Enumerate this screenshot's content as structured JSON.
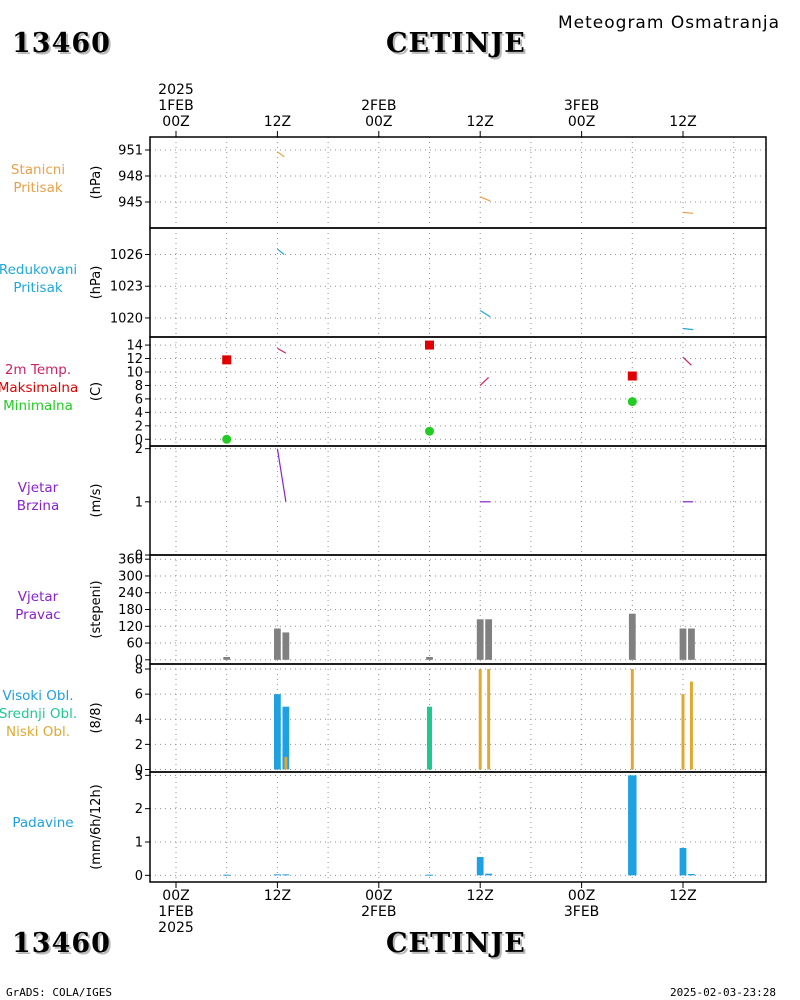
{
  "header": {
    "chart_type": "Meteogram Osmatranja",
    "station_id": "13460",
    "station_name": "CETINJE"
  },
  "footer": {
    "software": "GrADS: COLA/IGES",
    "generated": "2025-02-03-23:28"
  },
  "time_axis": {
    "top_labels": [
      {
        "lines": [
          "2025",
          "1FEB",
          "00Z"
        ],
        "h": 0
      },
      {
        "lines": [
          "12Z"
        ],
        "h": 12
      },
      {
        "lines": [
          "2FEB",
          "00Z"
        ],
        "h": 24
      },
      {
        "lines": [
          "12Z"
        ],
        "h": 36
      },
      {
        "lines": [
          "3FEB",
          "00Z"
        ],
        "h": 48
      },
      {
        "lines": [
          "12Z"
        ],
        "h": 60
      }
    ],
    "bottom_labels": [
      {
        "lines": [
          "00Z",
          "1FEB",
          "2025"
        ],
        "h": 0
      },
      {
        "lines": [
          "12Z"
        ],
        "h": 12
      },
      {
        "lines": [
          "00Z",
          "2FEB"
        ],
        "h": 24
      },
      {
        "lines": [
          "12Z"
        ],
        "h": 36
      },
      {
        "lines": [
          "00Z",
          "3FEB"
        ],
        "h": 48
      },
      {
        "lines": [
          "12Z"
        ],
        "h": 60
      }
    ]
  },
  "colors": {
    "station_pressure": "#e8a14a",
    "reduced_pressure": "#1fa8d8",
    "temperature": "#cc2266",
    "tmax": "#e00000",
    "tmin": "#22cc22",
    "wind": "#8822cc",
    "wind_dir_bar": "#808080",
    "high_cloud": "#1fa0e0",
    "mid_cloud": "#20c890",
    "low_cloud": "#e0a830",
    "precip": "#1fa0e0"
  },
  "chart_data": [
    {
      "type": "line",
      "panel": "station_pressure",
      "label_lines": [
        "Stanicni",
        "Pritisak"
      ],
      "ylabel": "(hPa)",
      "yticks": [
        945,
        948,
        951
      ],
      "ylim": [
        942,
        952.5
      ],
      "series": [
        {
          "points": [
            [
              12,
              950.8
            ],
            [
              12.8,
              950.2
            ]
          ]
        },
        {
          "points": [
            [
              36,
              945.6
            ],
            [
              37.2,
              945.1
            ]
          ]
        },
        {
          "points": [
            [
              60,
              943.8
            ],
            [
              61.2,
              943.7
            ]
          ]
        }
      ]
    },
    {
      "type": "line",
      "panel": "reduced_pressure",
      "label_lines": [
        "Redukovani",
        "Pritisak"
      ],
      "ylabel": "(hPa)",
      "yticks": [
        1020,
        1023,
        1026
      ],
      "ylim": [
        1018.2,
        1028.5
      ],
      "series": [
        {
          "points": [
            [
              12,
              1026.5
            ],
            [
              12.8,
              1026.0
            ]
          ]
        },
        {
          "points": [
            [
              36,
              1020.7
            ],
            [
              37.2,
              1020.1
            ]
          ]
        },
        {
          "points": [
            [
              60,
              1019.0
            ],
            [
              61.2,
              1018.9
            ]
          ]
        }
      ]
    },
    {
      "type": "line",
      "panel": "temperature",
      "label_lines": [
        "2m Temp.",
        "Maksimalna",
        "Minimalna"
      ],
      "ylabel": "(C)",
      "yticks": [
        0,
        2,
        4,
        6,
        8,
        10,
        12,
        14
      ],
      "ylim": [
        -1,
        15.2
      ],
      "series": [
        {
          "points": [
            [
              12,
              13.5
            ],
            [
              13,
              12.8
            ]
          ]
        },
        {
          "points": [
            [
              36,
              8.0
            ],
            [
              37,
              9.2
            ]
          ]
        },
        {
          "points": [
            [
              60,
              12.2
            ],
            [
              61,
              11.0
            ]
          ]
        }
      ],
      "tmax": [
        [
          6,
          11.8
        ],
        [
          30,
          14.0
        ],
        [
          54,
          9.4
        ]
      ],
      "tmin": [
        [
          6,
          0.0
        ],
        [
          30,
          1.2
        ],
        [
          54,
          5.6
        ]
      ]
    },
    {
      "type": "line",
      "panel": "wind_speed",
      "label_lines": [
        "Vjetar",
        "Brzina"
      ],
      "ylabel": "(m/s)",
      "yticks": [
        0,
        1,
        2
      ],
      "ylim": [
        0,
        2.05
      ],
      "series": [
        {
          "points": [
            [
              12,
              2.0
            ],
            [
              13,
              1.0
            ]
          ]
        },
        {
          "points": [
            [
              36,
              1.0
            ],
            [
              37.2,
              1.0
            ]
          ]
        },
        {
          "points": [
            [
              60,
              1.0
            ],
            [
              61.2,
              1.0
            ]
          ]
        }
      ]
    },
    {
      "type": "bar",
      "panel": "wind_direction",
      "label_lines": [
        "Vjetar",
        "Pravac"
      ],
      "ylabel": "(stepeni)",
      "yticks": [
        0,
        60,
        120,
        180,
        240,
        300,
        360
      ],
      "ylim": [
        -15,
        375
      ],
      "bars": [
        {
          "h": 6,
          "value": 10
        },
        {
          "h": 12,
          "value": 112
        },
        {
          "h": 13,
          "value": 98
        },
        {
          "h": 30,
          "value": 10
        },
        {
          "h": 36,
          "value": 145
        },
        {
          "h": 37,
          "value": 145
        },
        {
          "h": 54,
          "value": 165
        },
        {
          "h": 60,
          "value": 112
        },
        {
          "h": 61,
          "value": 112
        }
      ]
    },
    {
      "type": "bar",
      "panel": "clouds",
      "label_lines": [
        "Visoki Obl.",
        "Srednji Obl.",
        "Niski Obl."
      ],
      "ylabel": "(8/8)",
      "yticks": [
        0,
        2,
        4,
        6,
        8
      ],
      "ylim": [
        -0.2,
        8.4
      ],
      "high": [
        {
          "h": 12,
          "value": 6
        },
        {
          "h": 13,
          "value": 5
        }
      ],
      "mid": [
        {
          "h": 30,
          "value": 5
        }
      ],
      "low": [
        {
          "h": 13,
          "value": 1
        },
        {
          "h": 36,
          "value": 8
        },
        {
          "h": 37,
          "value": 8
        },
        {
          "h": 54,
          "value": 8
        },
        {
          "h": 60,
          "value": 6
        },
        {
          "h": 61,
          "value": 7
        }
      ]
    },
    {
      "type": "bar",
      "panel": "precipitation",
      "label_lines": [
        "Padavine"
      ],
      "ylabel": "(mm/6h/12h)",
      "yticks": [
        0,
        1,
        2,
        3
      ],
      "ylim": [
        -0.2,
        3.1
      ],
      "bars": [
        {
          "h": 6,
          "value": 0.02,
          "w": 0.8
        },
        {
          "h": 12,
          "value": 0.03,
          "w": 0.8
        },
        {
          "h": 13,
          "value": 0.03,
          "w": 0.8
        },
        {
          "h": 30,
          "value": 0.02,
          "w": 0.8
        },
        {
          "h": 36,
          "value": 0.55,
          "w": 0.8
        },
        {
          "h": 37,
          "value": 0.05,
          "w": 0.8
        },
        {
          "h": 54,
          "value": 3.0,
          "w": 1.0
        },
        {
          "h": 60,
          "value": 0.82,
          "w": 0.8
        },
        {
          "h": 61,
          "value": 0.04,
          "w": 0.8
        }
      ]
    }
  ]
}
